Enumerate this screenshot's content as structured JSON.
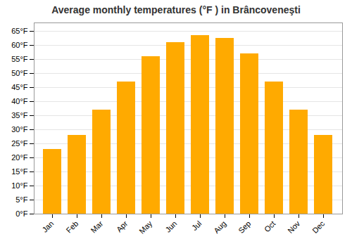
{
  "chart_data": {
    "type": "bar",
    "title": "Average monthly temperatures (°F ) in Brâncoveneşti",
    "categories": [
      "Jan",
      "Feb",
      "Mar",
      "Apr",
      "May",
      "Jun",
      "Jul",
      "Aug",
      "Sep",
      "Oct",
      "Nov",
      "Dec"
    ],
    "values": [
      23.0,
      28.0,
      37.0,
      47.0,
      56.0,
      61.0,
      63.5,
      62.5,
      57.0,
      47.0,
      37.0,
      28.0
    ],
    "color": "#FFAA00",
    "ylim": [
      0,
      68
    ],
    "yticks": [
      {
        "value": 0,
        "label": "0°F"
      },
      {
        "value": 5,
        "label": "5°F"
      },
      {
        "value": 10,
        "label": "10°F"
      },
      {
        "value": 15,
        "label": "15°F"
      },
      {
        "value": 20,
        "label": "20°F"
      },
      {
        "value": 25,
        "label": "25°F"
      },
      {
        "value": 30,
        "label": "30°F"
      },
      {
        "value": 35,
        "label": "35°F"
      },
      {
        "value": 40,
        "label": "40°F"
      },
      {
        "value": 45,
        "label": "45°F"
      },
      {
        "value": 50,
        "label": "50°F"
      },
      {
        "value": 55,
        "label": "55°F"
      },
      {
        "value": 60,
        "label": "60°F"
      },
      {
        "value": 65,
        "label": "65°F"
      }
    ],
    "grid": true
  }
}
